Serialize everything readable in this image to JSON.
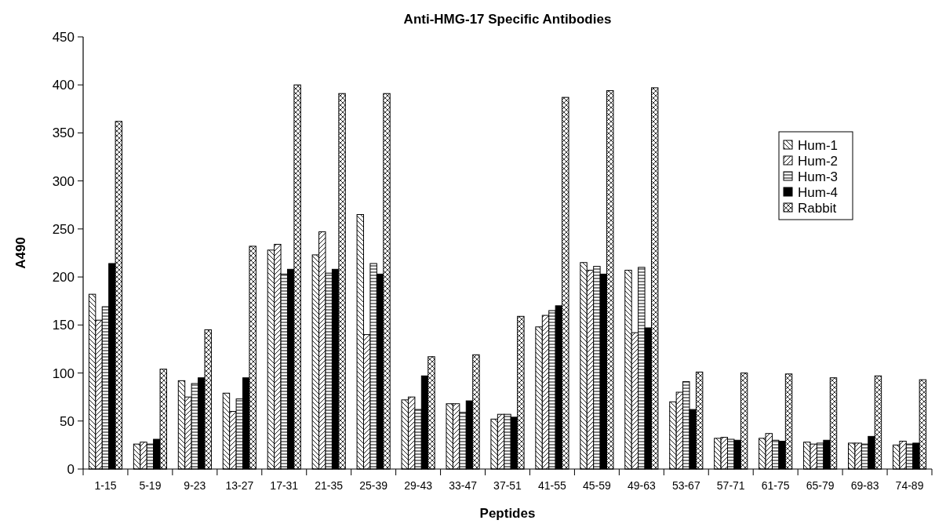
{
  "chart_data": {
    "type": "bar",
    "title": "Anti-HMG-17 Specific Antibodies",
    "xlabel": "Peptides",
    "ylabel": "A490",
    "categories": [
      "1-15",
      "5-19",
      "9-23",
      "13-27",
      "17-31",
      "21-35",
      "25-39",
      "29-43",
      "33-47",
      "37-51",
      "41-55",
      "45-59",
      "49-63",
      "53-67",
      "57-71",
      "61-75",
      "65-79",
      "69-83",
      "74-89"
    ],
    "series": [
      {
        "name": "Hum-1",
        "color": "#000000",
        "values": [
          182,
          26,
          92,
          79,
          228,
          223,
          265,
          72,
          68,
          52,
          148,
          215,
          207,
          70,
          32,
          32,
          28,
          27,
          25
        ]
      },
      {
        "name": "Hum-2",
        "color": "#000000",
        "values": [
          155,
          28,
          75,
          60,
          234,
          247,
          140,
          75,
          68,
          57,
          160,
          207,
          142,
          80,
          33,
          37,
          26,
          27,
          29
        ]
      },
      {
        "name": "Hum-3",
        "color": "#000000",
        "values": [
          169,
          26,
          89,
          73,
          203,
          204,
          214,
          62,
          59,
          57,
          165,
          211,
          210,
          91,
          31,
          30,
          27,
          26,
          26
        ]
      },
      {
        "name": "Hum-4",
        "color": "#000000",
        "values": [
          214,
          31,
          95,
          95,
          208,
          208,
          203,
          97,
          71,
          54,
          170,
          203,
          147,
          62,
          30,
          29,
          30,
          34,
          27
        ]
      },
      {
        "name": "Rabbit",
        "color": "#000000",
        "values": [
          362,
          104,
          145,
          232,
          400,
          391,
          391,
          117,
          119,
          159,
          387,
          394,
          397,
          101,
          100,
          99,
          95,
          97,
          93
        ]
      }
    ],
    "ylim": [
      0,
      450
    ],
    "yticks": [
      0,
      50,
      100,
      150,
      200,
      250,
      300,
      350,
      400,
      450
    ],
    "grid": false,
    "legend": "right"
  }
}
